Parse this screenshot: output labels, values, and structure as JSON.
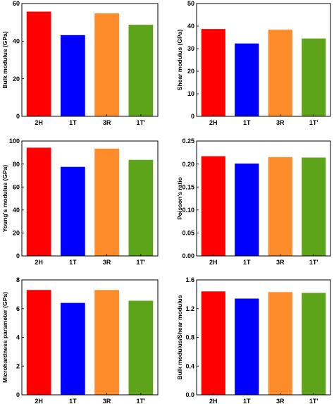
{
  "chart_data": [
    {
      "type": "bar",
      "categories": [
        "2H",
        "1T",
        "3R",
        "1T'"
      ],
      "values": [
        55.7,
        43.2,
        54.8,
        48.7
      ],
      "xlabel": "",
      "ylabel": "Bulk modulus (GPa)",
      "ylim": [
        0,
        60
      ],
      "yticks": [
        0,
        20,
        40,
        60
      ],
      "ytick_labels": [
        "0",
        "20",
        "40",
        "60"
      ],
      "colors": [
        "#ff0000",
        "#0000ff",
        "#ff8c2b",
        "#5ea41a"
      ]
    },
    {
      "type": "bar",
      "categories": [
        "2H",
        "1T",
        "3R",
        "1T'"
      ],
      "values": [
        38.7,
        32.3,
        38.4,
        34.5
      ],
      "xlabel": "",
      "ylabel": "Shear modulus (GPa)",
      "ylim": [
        0,
        50
      ],
      "yticks": [
        0,
        10,
        20,
        30,
        40,
        50
      ],
      "ytick_labels": [
        "0",
        "10",
        "20",
        "30",
        "40",
        "50"
      ],
      "colors": [
        "#ff0000",
        "#0000ff",
        "#ff8c2b",
        "#5ea41a"
      ]
    },
    {
      "type": "bar",
      "categories": [
        "2H",
        "1T",
        "3R",
        "1T'"
      ],
      "values": [
        94.2,
        77.5,
        93.4,
        83.6
      ],
      "xlabel": "",
      "ylabel": "Young's modulus (GPa)",
      "ylim": [
        0,
        100
      ],
      "yticks": [
        0,
        20,
        40,
        60,
        80,
        100
      ],
      "ytick_labels": [
        "0",
        "20",
        "40",
        "60",
        "80",
        "100"
      ],
      "colors": [
        "#ff0000",
        "#0000ff",
        "#ff8c2b",
        "#5ea41a"
      ]
    },
    {
      "type": "bar",
      "categories": [
        "2H",
        "1T",
        "3R",
        "1T'"
      ],
      "values": [
        0.217,
        0.201,
        0.215,
        0.214
      ],
      "xlabel": "",
      "ylabel": "Poisson's ratio",
      "ylim": [
        0,
        0.25
      ],
      "yticks": [
        0,
        0.05,
        0.1,
        0.15,
        0.2,
        0.25
      ],
      "ytick_labels": [
        "0.00",
        "0.05",
        "0.10",
        "0.15",
        "0.20",
        "0.25"
      ],
      "colors": [
        "#ff0000",
        "#0000ff",
        "#ff8c2b",
        "#5ea41a"
      ]
    },
    {
      "type": "bar",
      "categories": [
        "2H",
        "1T",
        "3R",
        "1T'"
      ],
      "values": [
        7.3,
        6.4,
        7.3,
        6.55
      ],
      "xlabel": "",
      "ylabel": "Microhardness parameter (GPa)",
      "ylim": [
        0,
        8
      ],
      "yticks": [
        0,
        2,
        4,
        6,
        8
      ],
      "ytick_labels": [
        "0",
        "2",
        "4",
        "6",
        "8"
      ],
      "colors": [
        "#ff0000",
        "#0000ff",
        "#ff8c2b",
        "#5ea41a"
      ]
    },
    {
      "type": "bar",
      "categories": [
        "2H",
        "1T",
        "3R",
        "1T'"
      ],
      "values": [
        1.44,
        1.34,
        1.43,
        1.42
      ],
      "xlabel": "",
      "ylabel": "Bulk modulus/Shear modulus",
      "ylim": [
        0,
        1.6
      ],
      "yticks": [
        0,
        0.4,
        0.8,
        1.2,
        1.6
      ],
      "ytick_labels": [
        "0.0",
        "0.4",
        "0.8",
        "1.2",
        "1.6"
      ],
      "colors": [
        "#ff0000",
        "#0000ff",
        "#ff8c2b",
        "#5ea41a"
      ]
    }
  ]
}
